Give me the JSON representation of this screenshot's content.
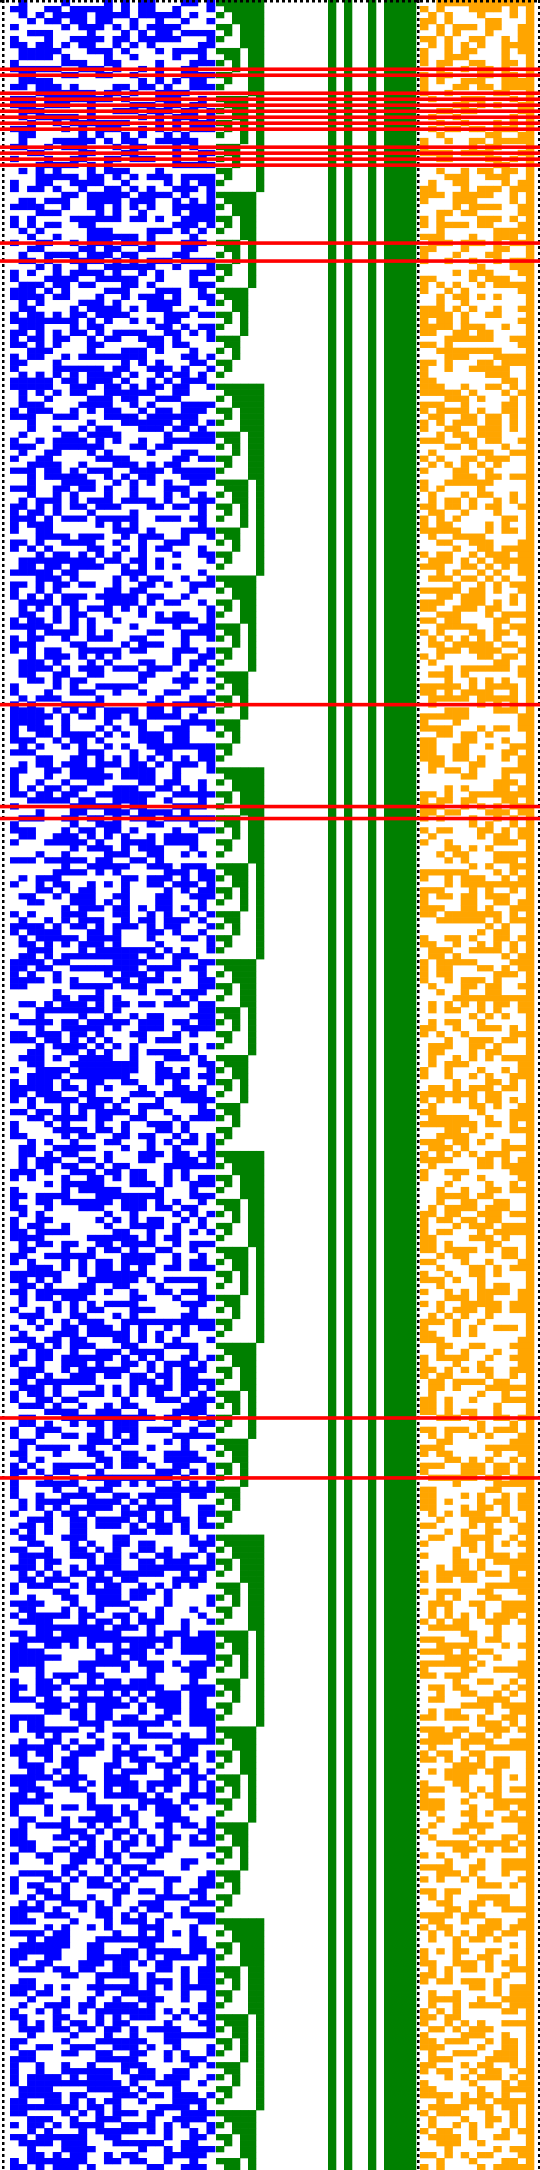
{
  "figure": {
    "kind": "bit-pattern visualization",
    "grid_rows": 362,
    "colors": {
      "background": "#ffffff",
      "blue_block": "#0000ff",
      "green_block": "#008000",
      "orange_block": "#ffa500",
      "highlight_row": "#ff0000",
      "separator_dots": "#000000"
    },
    "blue_block": {
      "columns": 24,
      "fill_density": 0.52
    },
    "green_block": {
      "staircase_columns": 6,
      "solid_columns": 19,
      "solid_column_pattern": [
        0,
        0,
        0,
        0,
        0,
        0,
        0,
        0,
        1,
        0,
        1,
        0,
        0,
        1,
        0,
        1,
        1,
        1,
        1
      ]
    },
    "orange_block": {
      "columns": 14,
      "fill_density": 0.47,
      "last_column_solid": true
    },
    "highlighted_rows": [
      11,
      12,
      15,
      16,
      17,
      18,
      19,
      20,
      21,
      24,
      25,
      26,
      27,
      40,
      43,
      117,
      134,
      136,
      236,
      246
    ]
  }
}
